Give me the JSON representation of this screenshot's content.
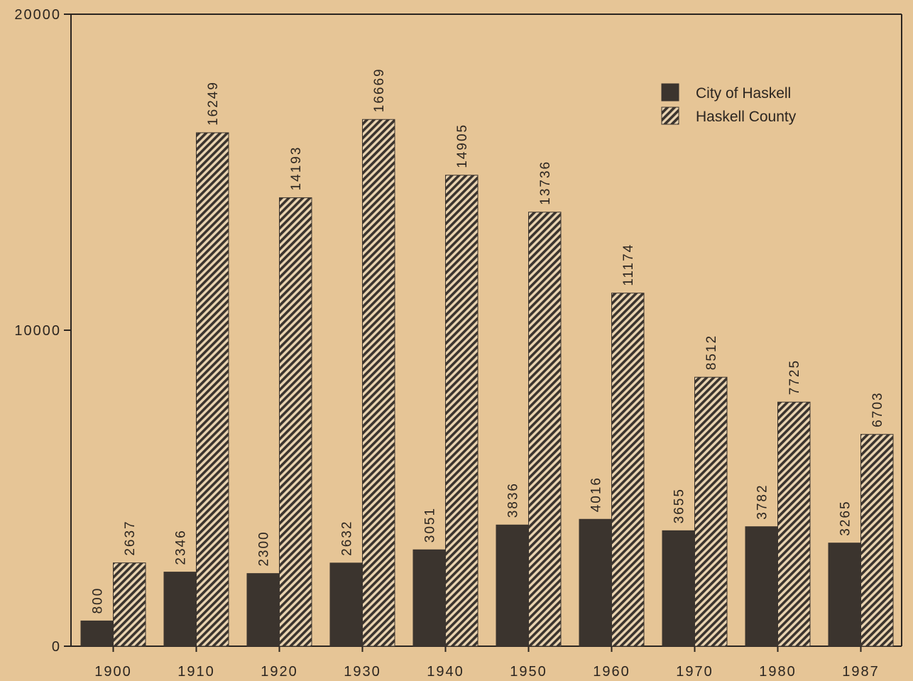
{
  "chart_data": {
    "type": "bar",
    "categories": [
      "1900",
      "1910",
      "1920",
      "1930",
      "1940",
      "1950",
      "1960",
      "1970",
      "1980",
      "1987"
    ],
    "series": [
      {
        "name": "City of Haskell",
        "color": "#3b342e",
        "hatch": false,
        "values": [
          800,
          2346,
          2300,
          2632,
          3051,
          3836,
          4016,
          3655,
          3782,
          3265
        ]
      },
      {
        "name": "Haskell County",
        "color": "#3b342e",
        "hatch": true,
        "values": [
          2637,
          16249,
          14193,
          16669,
          14905,
          13736,
          11174,
          8512,
          7725,
          6703
        ]
      }
    ],
    "ylim": [
      0,
      20000
    ],
    "yticks": [
      0,
      10000,
      20000
    ],
    "legend": "upper right",
    "grid": false
  }
}
